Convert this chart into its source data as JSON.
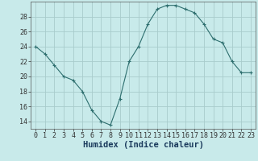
{
  "x": [
    0,
    1,
    2,
    3,
    4,
    5,
    6,
    7,
    8,
    9,
    10,
    11,
    12,
    13,
    14,
    15,
    16,
    17,
    18,
    19,
    20,
    21,
    22,
    23
  ],
  "y": [
    24,
    23,
    21.5,
    20,
    19.5,
    18,
    15.5,
    14,
    13.5,
    17,
    22,
    24,
    27,
    29,
    29.5,
    29.5,
    29,
    28.5,
    27,
    25,
    24.5,
    22,
    20.5,
    20.5
  ],
  "line_color": "#2d6e6e",
  "marker": "+",
  "marker_size": 3.5,
  "marker_linewidth": 0.8,
  "bg_color": "#c8eaea",
  "grid_color": "#a8cccc",
  "xlabel": "Humidex (Indice chaleur)",
  "xlabel_fontsize": 7.5,
  "xlabel_color": "#1a3a5c",
  "tick_label_fontsize": 6,
  "ylim": [
    13,
    30
  ],
  "yticks": [
    14,
    16,
    18,
    20,
    22,
    24,
    26,
    28
  ],
  "xlim": [
    -0.5,
    23.5
  ],
  "line_width": 0.8
}
